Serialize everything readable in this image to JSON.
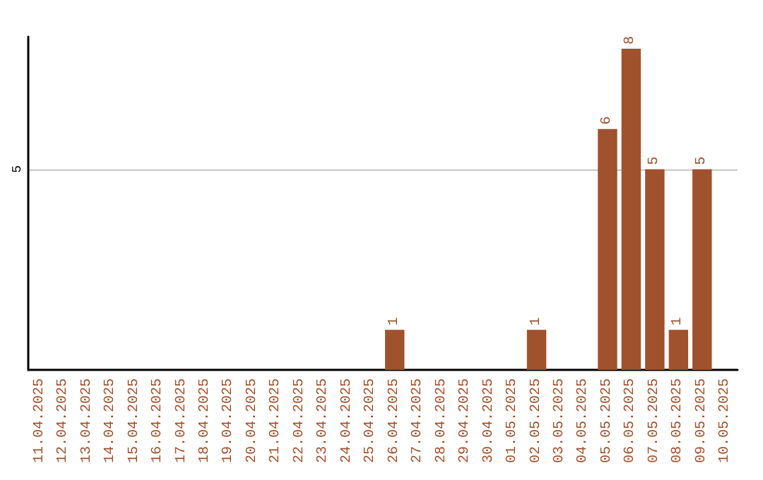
{
  "chart_data": {
    "type": "bar",
    "categories": [
      "11.04.2025",
      "12.04.2025",
      "13.04.2025",
      "14.04.2025",
      "15.04.2025",
      "16.04.2025",
      "17.04.2025",
      "18.04.2025",
      "19.04.2025",
      "20.04.2025",
      "21.04.2025",
      "22.04.2025",
      "23.04.2025",
      "24.04.2025",
      "25.04.2025",
      "26.04.2025",
      "27.04.2025",
      "28.04.2025",
      "29.04.2025",
      "30.04.2025",
      "01.05.2025",
      "02.05.2025",
      "03.05.2025",
      "04.05.2025",
      "05.05.2025",
      "06.05.2025",
      "07.05.2025",
      "08.05.2025",
      "09.05.2025",
      "10.05.2025"
    ],
    "values": [
      null,
      null,
      null,
      null,
      null,
      null,
      null,
      null,
      null,
      null,
      null,
      null,
      null,
      null,
      null,
      1,
      null,
      null,
      null,
      null,
      null,
      1,
      null,
      null,
      6,
      8,
      5,
      1,
      5,
      null
    ],
    "data_labels": true,
    "color": "#a0522d",
    "ylim": [
      0,
      8.3
    ],
    "yticks": [
      5
    ],
    "grid": "y"
  }
}
